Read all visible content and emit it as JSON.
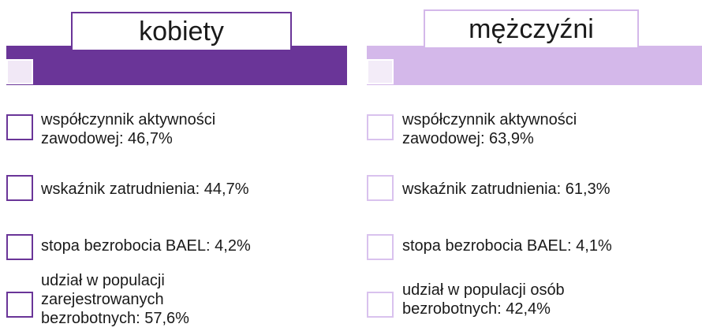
{
  "columns": [
    {
      "title": "kobiety",
      "items": [
        [
          "współczynnik aktywności",
          "zawodowej: 46,7%"
        ],
        [
          "wskaźnik zatrudnienia: 44,7%"
        ],
        [
          "stopa bezrobocia BAEL: 4,2%"
        ],
        [
          "udział w populacji",
          "zarejestrowanych",
          "bezrobotnych: 57,6%"
        ]
      ]
    },
    {
      "title": "mężczyźni",
      "items": [
        [
          "współczynnik aktywności",
          "zawodowej: 63,9%"
        ],
        [
          "wskaźnik zatrudnienia: 61,3%"
        ],
        [
          "stopa bezrobocia BAEL: 4,1%"
        ],
        [
          "udział w populacji osób",
          "bezrobotnych: 42,4%"
        ]
      ]
    }
  ]
}
